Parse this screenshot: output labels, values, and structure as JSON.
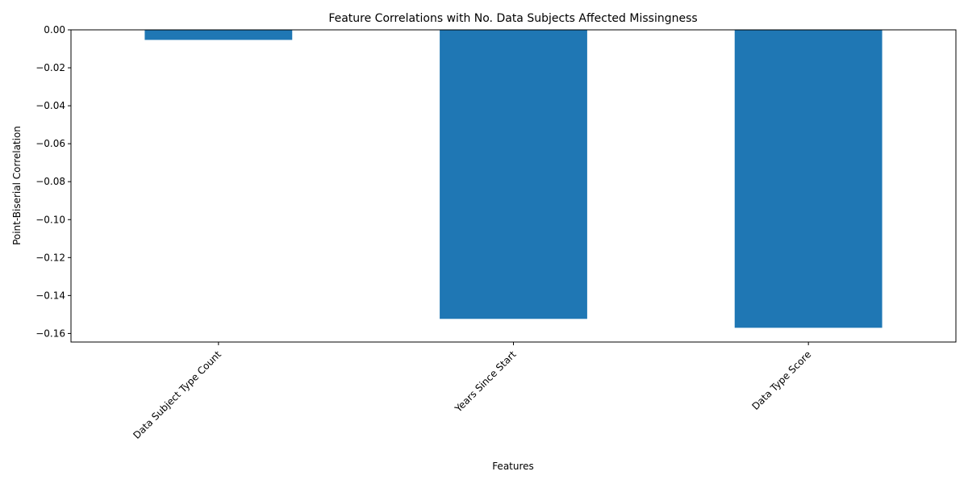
{
  "chart_data": {
    "type": "bar",
    "title": "Feature Correlations with No. Data Subjects Affected Missingness",
    "xlabel": "Features",
    "ylabel": "Point-Biserial Correlation",
    "categories": [
      "Data Subject Type Count",
      "Years Since Start",
      "Data Type Score"
    ],
    "values": [
      -0.0053,
      -0.1523,
      -0.157
    ],
    "ylim": [
      -0.1645,
      0.0
    ],
    "yticks": [
      0.0,
      -0.02,
      -0.04,
      -0.06,
      -0.08,
      -0.1,
      -0.12,
      -0.14,
      -0.16
    ],
    "ytick_labels": [
      "0.00",
      "−0.02",
      "−0.04",
      "−0.06",
      "−0.08",
      "−0.10",
      "−0.12",
      "−0.14",
      "−0.16"
    ],
    "bar_color": "#1f77b4",
    "grid": false,
    "legend": "none"
  }
}
